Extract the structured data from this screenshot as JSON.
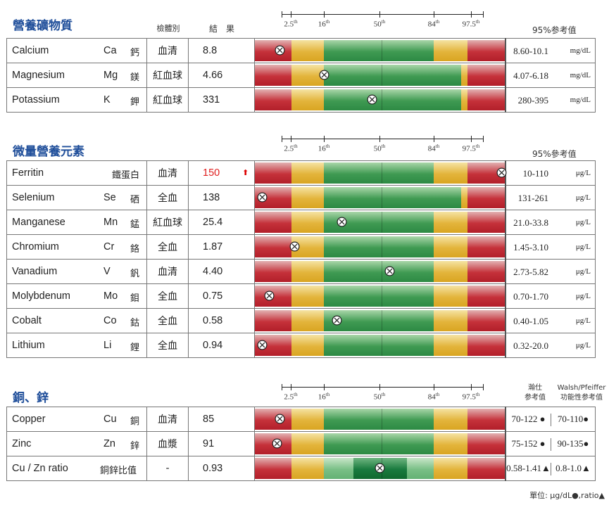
{
  "sections": [
    {
      "title": "營養礦物質",
      "headers": {
        "specimen": "檢體別",
        "result": "結　果",
        "ref": "95%参考值"
      },
      "rows": [
        {
          "en": "Calcium",
          "sym": "Ca",
          "zh": "鈣",
          "specimen": "血清",
          "result": "8.8",
          "range": "8.60-10.1",
          "unit": "mg/dL",
          "marker_pct": 0.1
        },
        {
          "en": "Magnesium",
          "sym": "Mg",
          "zh": "鎂",
          "specimen": "紅血球",
          "result": "4.66",
          "range": "4.07-6.18",
          "unit": "mg/dL",
          "marker_pct": 0.28
        },
        {
          "en": "Potassium",
          "sym": "K",
          "zh": "鉀",
          "specimen": "紅血球",
          "result": "331",
          "range": "280-395",
          "unit": "mg/dL",
          "marker_pct": 0.47
        }
      ]
    },
    {
      "title": "微量營養元素",
      "headers": {
        "ref": "95%參考值"
      },
      "rows": [
        {
          "en": "Ferritin",
          "sym": "",
          "zh": "鐵蛋白",
          "specimen": "血清",
          "result": "150",
          "high": true,
          "range": "10-110",
          "unit": "μg/L",
          "marker_pct": 0.99
        },
        {
          "en": "Selenium",
          "sym": "Se",
          "zh": "硒",
          "specimen": "全血",
          "result": "138",
          "range": "131-261",
          "unit": "μg/L",
          "marker_pct": 0.03
        },
        {
          "en": "Manganese",
          "sym": "Mn",
          "zh": "錳",
          "specimen": "紅血球",
          "result": "25.4",
          "range": "21.0-33.8",
          "unit": "μg/L",
          "marker_pct": 0.35
        },
        {
          "en": "Chromium",
          "sym": "Cr",
          "zh": "鉻",
          "specimen": "全血",
          "result": "1.87",
          "range": "1.45-3.10",
          "unit": "μg/L",
          "marker_pct": 0.16
        },
        {
          "en": "Vanadium",
          "sym": "V",
          "zh": "釩",
          "specimen": "血清",
          "result": "4.40",
          "range": "2.73-5.82",
          "unit": "μg/L",
          "marker_pct": 0.54
        },
        {
          "en": "Molybdenum",
          "sym": "Mo",
          "zh": "鉬",
          "specimen": "全血",
          "result": "0.75",
          "range": "0.70-1.70",
          "unit": "μg/L",
          "marker_pct": 0.06
        },
        {
          "en": "Cobalt",
          "sym": "Co",
          "zh": "鈷",
          "specimen": "全血",
          "result": "0.58",
          "range": "0.40-1.05",
          "unit": "μg/L",
          "marker_pct": 0.33
        },
        {
          "en": "Lithium",
          "sym": "Li",
          "zh": "鋰",
          "specimen": "全血",
          "result": "0.94",
          "range": "0.32-20.0",
          "unit": "μg/L",
          "marker_pct": 0.03
        }
      ]
    },
    {
      "title": "銅、鋅",
      "headers": {
        "ref_a_line1": "瀚仕",
        "ref_a_line2": "参考值",
        "ref_b_line1": "Walsh/Pfeiffer",
        "ref_b_line2": "功能性参考值"
      },
      "rows": [
        {
          "en": "Copper",
          "sym": "Cu",
          "zh": "銅",
          "specimen": "血清",
          "result": "85",
          "ref_a": "70-122 ●",
          "ref_b": "70-110●",
          "marker_pct": 0.1
        },
        {
          "en": "Zinc",
          "sym": "Zn",
          "zh": "鋅",
          "specimen": "血漿",
          "result": "91",
          "ref_a": "75-152 ●",
          "ref_b": "90-135●",
          "marker_pct": 0.09
        },
        {
          "en": "Cu / Zn ratio",
          "sym": "",
          "zh": "銅鋅比值",
          "specimen": "-",
          "result": "0.93",
          "ref_a": "0.58-1.41▲",
          "ref_b": "0.8-1.0▲",
          "marker_pct": 0.5
        }
      ]
    }
  ],
  "scale_labels": [
    "2.5th",
    "16th",
    "50th",
    "84th",
    "97.5th"
  ],
  "footnote": "單位: μg/dL●,ratio▲",
  "colors": {
    "title": "#1f4e9a",
    "red": "#c5313a",
    "yellow": "#e3b43b",
    "green": "#3f9a52",
    "high": "#e02020"
  }
}
